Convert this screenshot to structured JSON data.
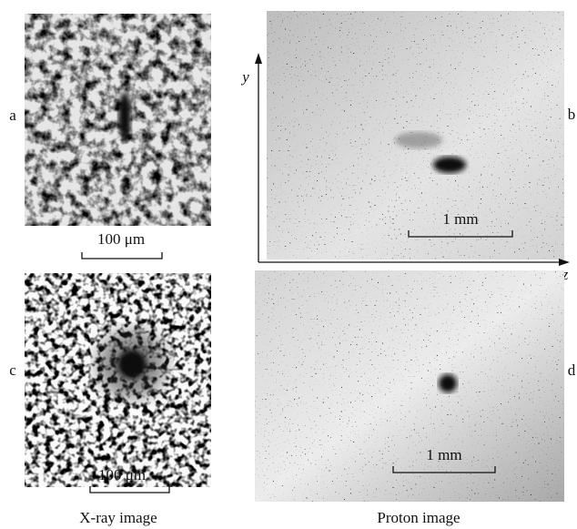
{
  "panels": [
    {
      "label": "a",
      "scale_bar": "100 μm"
    },
    {
      "label": "b",
      "scale_bar": "1 mm"
    },
    {
      "label": "c",
      "scale_bar": "100 μm"
    },
    {
      "label": "d",
      "scale_bar": "1 mm"
    }
  ],
  "axes": {
    "vertical": "y",
    "horizontal": "z"
  },
  "captions": {
    "left": "X-ray image",
    "right": "Proton image"
  }
}
